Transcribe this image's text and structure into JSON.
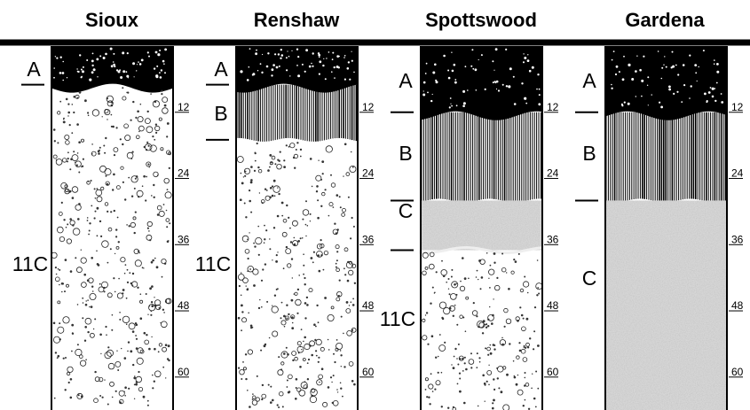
{
  "figure": {
    "profiles": [
      {
        "id": "sioux",
        "name": "Sioux",
        "horizons": [
          {
            "label": "A",
            "top_in": 0,
            "bottom_in": 7,
            "fill": "topsoil"
          },
          {
            "label": "11C",
            "top_in": 7,
            "bottom_in": 66,
            "fill": "gravel"
          }
        ],
        "depth_ticks": [
          "12",
          "24",
          "36",
          "48",
          "60"
        ]
      },
      {
        "id": "renshaw",
        "name": "Renshaw",
        "horizons": [
          {
            "label": "A",
            "top_in": 0,
            "bottom_in": 7,
            "fill": "topsoil"
          },
          {
            "label": "B",
            "top_in": 7,
            "bottom_in": 17,
            "fill": "prismatic"
          },
          {
            "label": "11C",
            "top_in": 17,
            "bottom_in": 66,
            "fill": "gravel"
          }
        ],
        "depth_ticks": [
          "12",
          "24",
          "36",
          "48",
          "60"
        ]
      },
      {
        "id": "spottswood",
        "name": "Spottswood",
        "horizons": [
          {
            "label": "A",
            "top_in": 0,
            "bottom_in": 12,
            "fill": "topsoil"
          },
          {
            "label": "B",
            "top_in": 12,
            "bottom_in": 28,
            "fill": "prismatic"
          },
          {
            "label": "C",
            "top_in": 28,
            "bottom_in": 37,
            "fill": "fine"
          },
          {
            "label": "11C",
            "top_in": 37,
            "bottom_in": 66,
            "fill": "gravel"
          }
        ],
        "depth_ticks": [
          "12",
          "24",
          "36",
          "48",
          "60"
        ]
      },
      {
        "id": "gardena",
        "name": "Gardena",
        "horizons": [
          {
            "label": "A",
            "top_in": 0,
            "bottom_in": 12,
            "fill": "topsoil"
          },
          {
            "label": "B",
            "top_in": 12,
            "bottom_in": 28,
            "fill": "prismatic"
          },
          {
            "label": "C",
            "top_in": 28,
            "bottom_in": 66,
            "fill": "fine"
          }
        ],
        "depth_ticks": [
          "12",
          "24",
          "36",
          "48",
          "60"
        ]
      }
    ]
  }
}
